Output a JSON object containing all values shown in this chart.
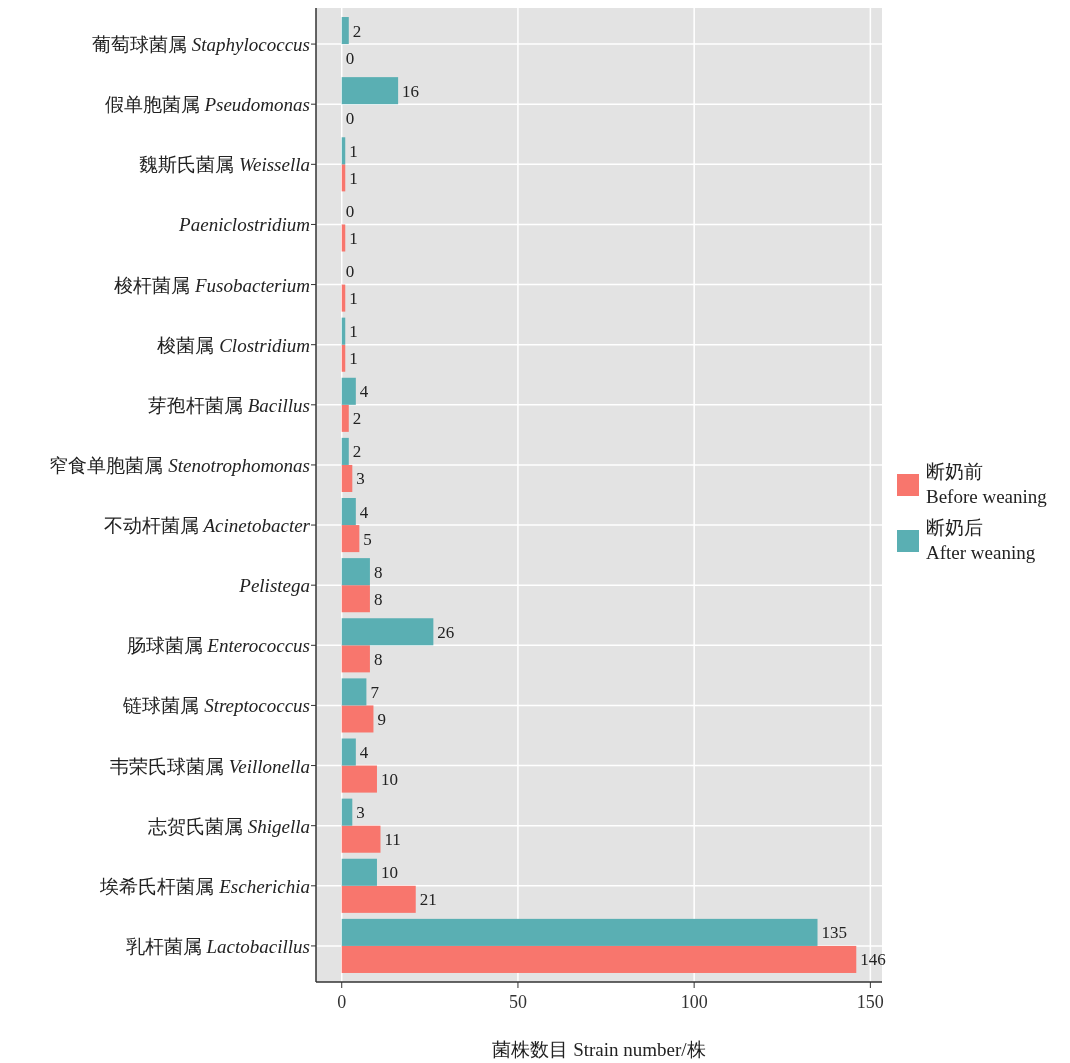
{
  "chart_data": {
    "type": "bar",
    "orientation": "horizontal",
    "categories": [
      "葡萄球菌属 *Staphylococcus*",
      "假单胞菌属 *Pseudomonas*",
      "魏斯氏菌属 *Weissella*",
      "*Paeniclostridium*",
      "梭杆菌属 *Fusobacterium*",
      "梭菌属 *Clostridium*",
      "芽孢杆菌属 *Bacillus*",
      "窄食单胞菌属 *Stenotrophomonas*",
      "不动杆菌属 *Acinetobacter*",
      "*Pelistega*",
      "肠球菌属 *Enterococcus*",
      "链球菌属 *Streptococcus*",
      "韦荣氏球菌属 *Veillonella*",
      "志贺氏菌属 *Shigella*",
      "埃希氏杆菌属 *Escherichia*",
      "乳杆菌属 *Lactobacillus*"
    ],
    "series": [
      {
        "name": "断奶前 Before weaning",
        "color": "#f8766d",
        "values": [
          0,
          0,
          1,
          1,
          1,
          1,
          2,
          3,
          5,
          8,
          8,
          9,
          10,
          11,
          21,
          146
        ]
      },
      {
        "name": "断奶后 After weaning",
        "color": "#5aafb3",
        "values": [
          2,
          16,
          1,
          0,
          0,
          1,
          4,
          2,
          4,
          8,
          26,
          7,
          4,
          3,
          10,
          135
        ]
      }
    ],
    "xlim": [
      -7.3,
      153.3
    ],
    "xticks": [
      0,
      50,
      100,
      150
    ],
    "xlabel": "菌株数目  Strain number/株",
    "data_labels": true,
    "grid": true,
    "legend": "right"
  }
}
